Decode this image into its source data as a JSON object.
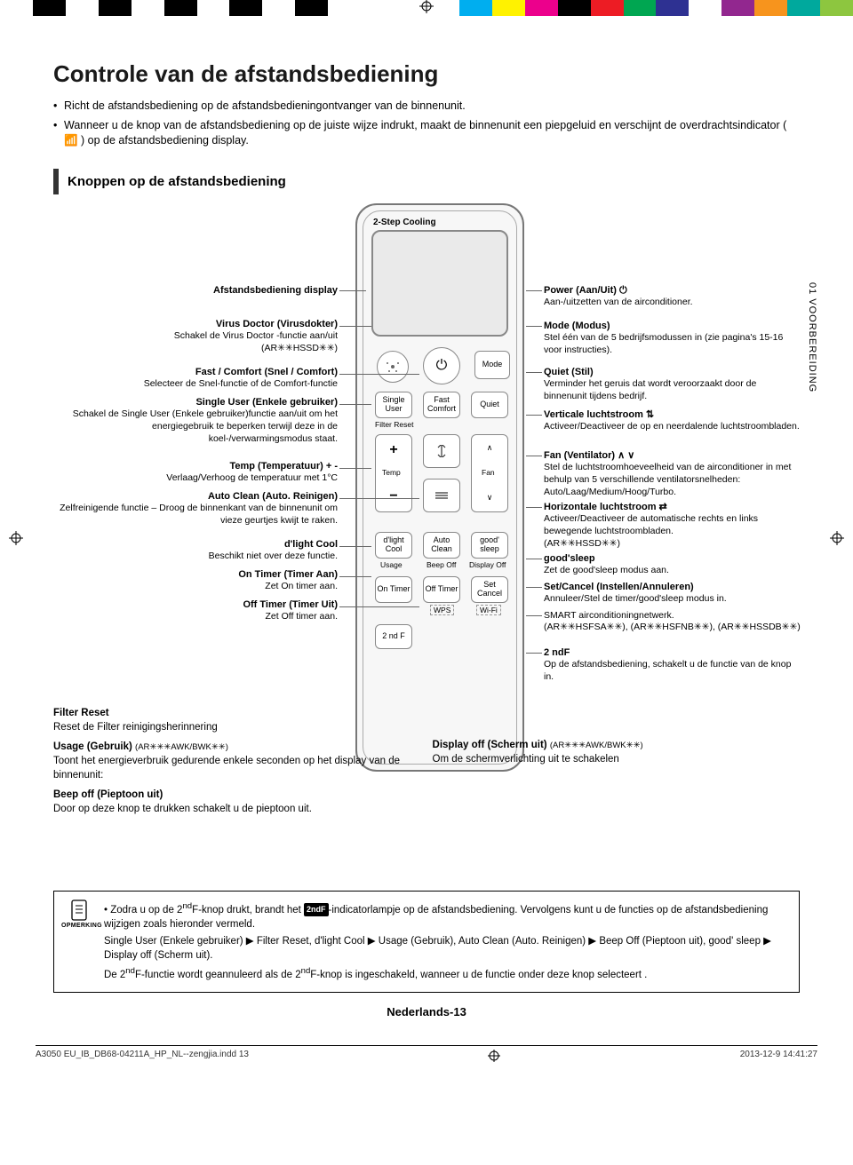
{
  "colorbar": [
    "#ffffff",
    "#000000",
    "#ffffff",
    "#000000",
    "#ffffff",
    "#000000",
    "#ffffff",
    "#000000",
    "#ffffff",
    "#000000",
    "#ffffff",
    "#ffffff",
    "#ffffff",
    "#ffffff",
    "#00aeef",
    "#fff200",
    "#ec008c",
    "#000000",
    "#ed1c24",
    "#00a651",
    "#2e3192",
    "#ffffff",
    "#92278f",
    "#f7941d",
    "#00a99d",
    "#8dc63f"
  ],
  "title": "Controle van de afstandsbediening",
  "intro": [
    "Richt de afstandsbediening op de afstandsbedieningontvanger van de binnenunit.",
    "Wanneer u de knop van de afstandsbediening op de juiste wijze indrukt, maakt de binnenunit een piepgeluid en verschijnt de overdrachtsindicator ( 📶 ) op de afstandsbediening display."
  ],
  "section_title": "Knoppen op de afstandsbediening",
  "side_tab": "01  VOORBEREIDING",
  "remote": {
    "step_cooling": "2-Step Cooling",
    "buttons": {
      "power": "⏻",
      "mode": "Mode",
      "fast_comfort": "Fast Comfort",
      "single_user": "Single User",
      "quiet": "Quiet",
      "filter_reset": "Filter Reset",
      "temp": "Temp",
      "fan": "Fan",
      "dlight_cool": "d'light Cool",
      "auto_clean": "Auto Clean",
      "good_sleep": "good' sleep",
      "usage": "Usage",
      "beep_off": "Beep Off",
      "display_off": "Display Off",
      "on_timer": "On Timer",
      "off_timer": "Off Timer",
      "set_cancel": "Set Cancel",
      "wps": "WPS",
      "wifi": "Wi-Fi",
      "second_f": "2 nd F"
    }
  },
  "left_callouts": [
    {
      "t": "Afstandsbediening display",
      "d": ""
    },
    {
      "t": "Virus Doctor (Virusdokter)",
      "d": "Schakel de Virus Doctor -functie aan/uit\n(AR✳✳HSSD✳✳)"
    },
    {
      "t": "Fast / Comfort (Snel / Comfort)",
      "d": "Selecteer de Snel-functie of de Comfort-functie"
    },
    {
      "t": "Single User (Enkele gebruiker)",
      "d": "Schakel de Single User (Enkele gebruiker)functie aan/uit om het energiegebruik te beperken terwijl deze in de koel-/verwarmingsmodus staat."
    },
    {
      "t": "Temp (Temperatuur) + -",
      "d": "Verlaag/Verhoog de temperatuur met 1°C"
    },
    {
      "t": "Auto Clean (Auto. Reinigen)",
      "d": "Zelfreinigende functie – Droog de binnenkant van de binnenunit om vieze geurtjes kwijt te raken."
    },
    {
      "t": "d'light Cool",
      "d": "Beschikt niet over deze functie."
    },
    {
      "t": "On Timer (Timer Aan)",
      "d": "Zet On timer aan."
    },
    {
      "t": "Off Timer (Timer Uit)",
      "d": "Zet Off timer aan."
    }
  ],
  "right_callouts": [
    {
      "t": "Power (Aan/Uit) ⏻",
      "d": "Aan-/uitzetten van de airconditioner."
    },
    {
      "t": "Mode (Modus)",
      "d": "Stel één van de 5 bedrijfsmodussen in (zie pagina's 15-16 voor instructies)."
    },
    {
      "t": "Quiet (Stil)",
      "d": "Verminder het geruis dat wordt veroorzaakt door de binnenunit tijdens bedrijf."
    },
    {
      "t": "Verticale luchtstroom ⇅",
      "d": "Activeer/Deactiveer de op en neerdalende luchtstroombladen."
    },
    {
      "t": "Fan (Ventilator) ∧ ∨",
      "d": "Stel de luchtstroomhoeveelheid van de airconditioner in met behulp van 5 verschillende ventilatorsnelheden: Auto/Laag/Medium/Hoog/Turbo."
    },
    {
      "t": "Horizontale luchtstroom ⇄",
      "d": "Activeer/Deactiveer de automatische rechts en links bewegende luchtstroombladen.\n(AR✳✳HSSD✳✳)"
    },
    {
      "t": "good'sleep",
      "d": "Zet de good'sleep modus aan."
    },
    {
      "t": "Set/Cancel (Instellen/Annuleren)",
      "d": "Annuleer/Stel de timer/good'sleep modus in."
    },
    {
      "t": "",
      "d": "SMART airconditioningnetwerk.\n(AR✳✳HSFSA✳✳), (AR✳✳HSFNB✳✳), (AR✳✳HSSDB✳✳)"
    },
    {
      "t": "2 ndF",
      "d": "Op de afstandsbediening, schakelt u de functie van de knop in."
    }
  ],
  "below": {
    "filter_reset_t": "Filter Reset",
    "filter_reset_d": "Reset de Filter reinigingsherinnering",
    "usage_t": "Usage (Gebruik)",
    "usage_model": "(AR✳✳✳AWK/BWK✳✳)",
    "usage_d": "Toont het energieverbruik gedurende enkele seconden op het display van de binnenunit:",
    "beep_t": "Beep off (Pieptoon uit)",
    "beep_d": "Door op deze knop te drukken schakelt u de pieptoon uit.",
    "display_t": "Display off (Scherm uit)",
    "display_model": "(AR✳✳✳AWK/BWK✳✳)",
    "display_d": "Om de schermverlichting uit te schakelen"
  },
  "note": {
    "label": "OPMERKING",
    "line1a": "Zodra u op de 2",
    "line1b": "F-knop drukt, brandt het ",
    "chip": "2ndF",
    "line1c": "-indicatorlampje op de afstandsbediening. Vervolgens kunt u de functies op de afstandsbediening wijzigen zoals hieronder vermeld.",
    "line2": "Single User (Enkele gebruiker) ▶ Filter Reset, d'light Cool ▶ Usage (Gebruik), Auto Clean (Auto. Reinigen) ▶ Beep Off (Pieptoon uit), good' sleep ▶ Display off (Scherm uit).",
    "line3a": "De 2",
    "line3b": "F-functie wordt geannuleerd als de 2",
    "line3c": "F-knop is ingeschakeld, wanneer u de functie onder deze knop selecteert ."
  },
  "page_number": "Nederlands-13",
  "footer": {
    "file": "A3050 EU_IB_DB68-04211A_HP_NL--zengjia.indd   13",
    "date": "2013-12-9   14:41:27"
  }
}
